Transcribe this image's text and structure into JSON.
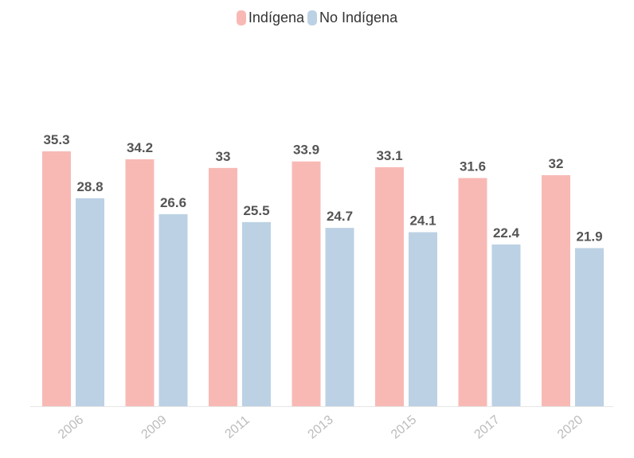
{
  "chart_data": {
    "type": "bar",
    "categories": [
      "2006",
      "2009",
      "2011",
      "2013",
      "2015",
      "2017",
      "2020"
    ],
    "series": [
      {
        "name": "Indígena",
        "color": "#f8b9b5",
        "values": [
          35.3,
          34.2,
          33,
          33.9,
          33.1,
          31.6,
          32
        ]
      },
      {
        "name": "No Indígena",
        "color": "#bcd1e4",
        "values": [
          28.8,
          26.6,
          25.5,
          24.7,
          24.1,
          22.4,
          21.9
        ]
      }
    ],
    "value_labels": [
      [
        "35.3",
        "34.2",
        "33",
        "33.9",
        "33.1",
        "31.6",
        "32"
      ],
      [
        "28.8",
        "26.6",
        "25.5",
        "24.7",
        "24.1",
        "22.4",
        "21.9"
      ]
    ],
    "ylim": [
      0,
      35.3
    ],
    "grid": false,
    "legend_position": "top-center",
    "data_labels": true,
    "x_tick_rotation": "diagonal"
  }
}
